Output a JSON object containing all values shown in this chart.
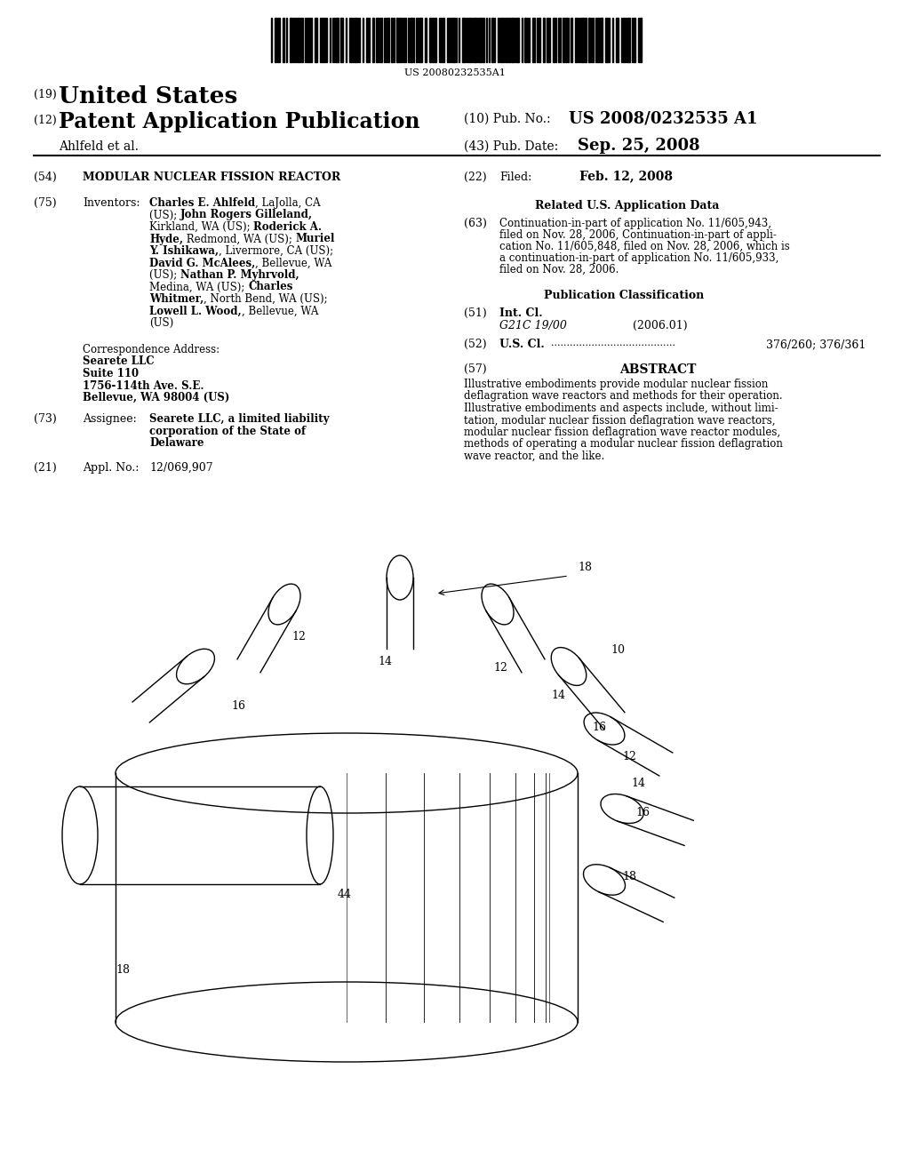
{
  "bg_color": "#ffffff",
  "barcode_text": "US 20080232535A1",
  "header_19": "(19)",
  "header_19_text": "United States",
  "header_12": "(12)",
  "header_12_text": "Patent Application Publication",
  "header_10_label": "(10) Pub. No.:",
  "header_10_value": "US 2008/0232535 A1",
  "header_43_label": "(43) Pub. Date:",
  "header_43_value": "Sep. 25, 2008",
  "applicant_line": "Ahlfeld et al.",
  "field_54_label": "(54)",
  "field_54_text": "MODULAR NUCLEAR FISSION REACTOR",
  "field_22_label": "(22)",
  "field_22_filed": "Filed:",
  "field_22_date": "Feb. 12, 2008",
  "field_75_label": "(75)",
  "field_75_tag": "Inventors:",
  "field_75_text": "Charles E. Ahlfeld, LaJolla, CA\n(US); John Rogers Gilleland,\nKirkland, WA (US); Roderick A.\nHyde, Redmond, WA (US); Muriel\nY. Ishikawa, Livermore, CA (US);\nDavid G. McAlees, Bellevue, WA\n(US); Nathan P. Myhrvold,\nMedina, WA (US); Charles\nWhitmer, North Bend, WA (US);\nLowell L. Wood, Bellevue, WA\n(US)",
  "related_us_title": "Related U.S. Application Data",
  "field_63_label": "(63)",
  "field_63_text": "Continuation-in-part of application No. 11/605,943,\nfiled on Nov. 28, 2006, Continuation-in-part of appli-\ncation No. 11/605,848, filed on Nov. 28, 2006, which is\na continuation-in-part of application No. 11/605,933,\nfiled on Nov. 28, 2006.",
  "corr_label": "Correspondence Address:",
  "corr_name": "Searete LLC",
  "corr_suite": "Suite 110",
  "corr_address": "1756-114th Ave. S.E.",
  "corr_city": "Bellevue, WA 98004 (US)",
  "pub_class_title": "Publication Classification",
  "field_51_label": "(51)",
  "field_51_tag": "Int. Cl.",
  "field_51_class": "G21C 19/00",
  "field_51_year": "(2006.01)",
  "field_52_label": "(52)",
  "field_52_tag": "U.S. Cl.",
  "field_52_value": "376/260; 376/361",
  "field_73_label": "(73)",
  "field_73_tag": "Assignee:",
  "field_73_text": "Searete LLC, a limited liability\ncorporation of the State of\nDelaware",
  "field_21_label": "(21)",
  "field_21_tag": "Appl. No.:",
  "field_21_value": "12/069,907",
  "field_57_label": "(57)",
  "field_57_tag": "ABSTRACT",
  "field_57_text": "Illustrative embodiments provide modular nuclear fission\ndeflagration wave reactors and methods for their operation.\nIllustrative embodiments and aspects include, without limi-\ntation, modular nuclear fission deflagration wave reactors,\nmodular nuclear fission deflagration wave reactor modules,\nmethods of operating a modular nuclear fission deflagration\nwave reactor, and the like."
}
